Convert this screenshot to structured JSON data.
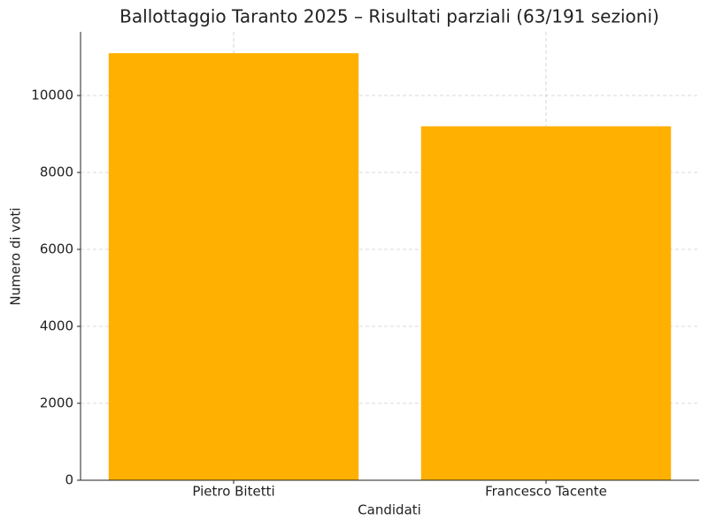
{
  "chart_data": {
    "type": "bar",
    "title": "Ballottaggio Taranto 2025 – Risultati parziali (63/191 sezioni)",
    "x_label": "Candidati",
    "y_label": "Numero di voti",
    "categories": [
      "Pietro Bitetti",
      "Francesco Tacente"
    ],
    "values": [
      11100,
      9200
    ],
    "color": "#ffb000",
    "ylim": [
      0,
      11655
    ],
    "yticks": [
      0,
      2000,
      4000,
      6000,
      8000,
      10000
    ],
    "grid": true
  }
}
